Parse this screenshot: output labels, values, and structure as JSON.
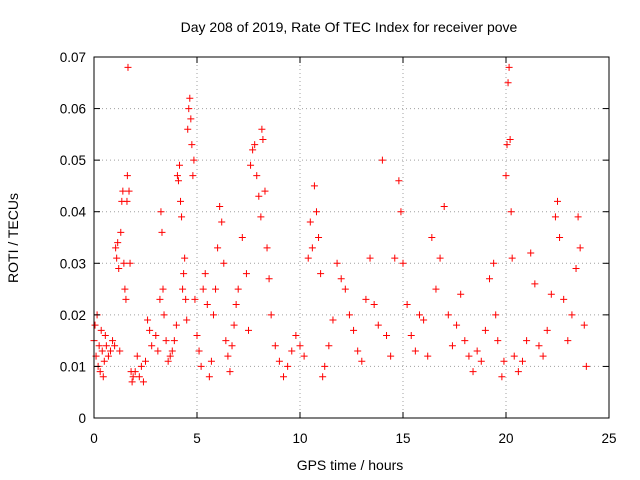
{
  "chart_data": {
    "type": "scatter",
    "title": "Day 208 of 2019, Rate Of TEC Index for receiver pove",
    "xlabel": "GPS time / hours",
    "ylabel": "ROTI / TECUs",
    "xlim": [
      0,
      25
    ],
    "ylim": [
      0,
      0.07
    ],
    "x_ticks": [
      "0",
      "5",
      "10",
      "15",
      "20",
      "25"
    ],
    "y_ticks": [
      "0",
      "0.01",
      "0.02",
      "0.03",
      "0.04",
      "0.05",
      "0.06",
      "0.07"
    ],
    "grid": true,
    "marker": "plus",
    "marker_color": "#ff0000",
    "series": [
      {
        "points": [
          [
            0.0,
            0.015
          ],
          [
            0.05,
            0.018
          ],
          [
            0.1,
            0.012
          ],
          [
            0.15,
            0.02
          ],
          [
            0.2,
            0.01
          ],
          [
            0.25,
            0.014
          ],
          [
            0.3,
            0.009
          ],
          [
            0.35,
            0.017
          ],
          [
            0.4,
            0.013
          ],
          [
            0.45,
            0.008
          ],
          [
            0.5,
            0.011
          ],
          [
            0.55,
            0.016
          ],
          [
            0.6,
            0.014
          ],
          [
            0.7,
            0.012
          ],
          [
            0.8,
            0.013
          ],
          [
            0.9,
            0.015
          ],
          [
            1.0,
            0.014
          ],
          [
            1.05,
            0.033
          ],
          [
            1.1,
            0.031
          ],
          [
            1.15,
            0.034
          ],
          [
            1.2,
            0.029
          ],
          [
            1.25,
            0.013
          ],
          [
            1.3,
            0.036
          ],
          [
            1.35,
            0.042
          ],
          [
            1.4,
            0.044
          ],
          [
            1.45,
            0.03
          ],
          [
            1.5,
            0.025
          ],
          [
            1.55,
            0.023
          ],
          [
            1.6,
            0.042
          ],
          [
            1.62,
            0.047
          ],
          [
            1.65,
            0.068
          ],
          [
            1.7,
            0.044
          ],
          [
            1.75,
            0.03
          ],
          [
            1.8,
            0.009
          ],
          [
            1.85,
            0.007
          ],
          [
            1.9,
            0.008
          ],
          [
            2.0,
            0.009
          ],
          [
            2.1,
            0.012
          ],
          [
            2.2,
            0.008
          ],
          [
            2.3,
            0.01
          ],
          [
            2.4,
            0.007
          ],
          [
            2.5,
            0.011
          ],
          [
            2.6,
            0.019
          ],
          [
            2.7,
            0.017
          ],
          [
            2.8,
            0.014
          ],
          [
            3.0,
            0.016
          ],
          [
            3.1,
            0.013
          ],
          [
            3.2,
            0.023
          ],
          [
            3.25,
            0.04
          ],
          [
            3.3,
            0.036
          ],
          [
            3.35,
            0.025
          ],
          [
            3.4,
            0.02
          ],
          [
            3.5,
            0.015
          ],
          [
            3.6,
            0.011
          ],
          [
            3.7,
            0.012
          ],
          [
            3.8,
            0.013
          ],
          [
            3.9,
            0.015
          ],
          [
            4.0,
            0.018
          ],
          [
            4.05,
            0.047
          ],
          [
            4.1,
            0.046
          ],
          [
            4.15,
            0.049
          ],
          [
            4.2,
            0.042
          ],
          [
            4.25,
            0.039
          ],
          [
            4.3,
            0.025
          ],
          [
            4.35,
            0.028
          ],
          [
            4.4,
            0.031
          ],
          [
            4.45,
            0.023
          ],
          [
            4.5,
            0.019
          ],
          [
            4.55,
            0.056
          ],
          [
            4.6,
            0.06
          ],
          [
            4.65,
            0.062
          ],
          [
            4.7,
            0.058
          ],
          [
            4.75,
            0.053
          ],
          [
            4.8,
            0.047
          ],
          [
            4.85,
            0.05
          ],
          [
            4.9,
            0.023
          ],
          [
            5.0,
            0.016
          ],
          [
            5.1,
            0.013
          ],
          [
            5.2,
            0.01
          ],
          [
            5.3,
            0.025
          ],
          [
            5.4,
            0.028
          ],
          [
            5.5,
            0.022
          ],
          [
            5.6,
            0.008
          ],
          [
            5.7,
            0.011
          ],
          [
            5.8,
            0.02
          ],
          [
            5.9,
            0.025
          ],
          [
            6.0,
            0.033
          ],
          [
            6.1,
            0.041
          ],
          [
            6.2,
            0.038
          ],
          [
            6.3,
            0.03
          ],
          [
            6.4,
            0.015
          ],
          [
            6.5,
            0.012
          ],
          [
            6.6,
            0.009
          ],
          [
            6.7,
            0.014
          ],
          [
            6.8,
            0.018
          ],
          [
            6.9,
            0.022
          ],
          [
            7.0,
            0.025
          ],
          [
            7.2,
            0.035
          ],
          [
            7.4,
            0.028
          ],
          [
            7.5,
            0.017
          ],
          [
            7.6,
            0.049
          ],
          [
            7.7,
            0.052
          ],
          [
            7.8,
            0.053
          ],
          [
            7.9,
            0.047
          ],
          [
            8.0,
            0.043
          ],
          [
            8.1,
            0.039
          ],
          [
            8.15,
            0.056
          ],
          [
            8.2,
            0.054
          ],
          [
            8.3,
            0.044
          ],
          [
            8.4,
            0.033
          ],
          [
            8.5,
            0.027
          ],
          [
            8.6,
            0.02
          ],
          [
            8.8,
            0.014
          ],
          [
            9.0,
            0.011
          ],
          [
            9.2,
            0.008
          ],
          [
            9.4,
            0.01
          ],
          [
            9.6,
            0.013
          ],
          [
            9.8,
            0.016
          ],
          [
            10.0,
            0.014
          ],
          [
            10.2,
            0.012
          ],
          [
            10.4,
            0.031
          ],
          [
            10.5,
            0.038
          ],
          [
            10.6,
            0.033
          ],
          [
            10.7,
            0.045
          ],
          [
            10.8,
            0.04
          ],
          [
            10.9,
            0.035
          ],
          [
            11.0,
            0.028
          ],
          [
            11.1,
            0.008
          ],
          [
            11.2,
            0.01
          ],
          [
            11.4,
            0.014
          ],
          [
            11.6,
            0.019
          ],
          [
            11.8,
            0.03
          ],
          [
            12.0,
            0.027
          ],
          [
            12.2,
            0.025
          ],
          [
            12.4,
            0.02
          ],
          [
            12.6,
            0.017
          ],
          [
            12.8,
            0.013
          ],
          [
            13.0,
            0.011
          ],
          [
            13.2,
            0.023
          ],
          [
            13.4,
            0.031
          ],
          [
            13.6,
            0.022
          ],
          [
            13.8,
            0.018
          ],
          [
            14.0,
            0.05
          ],
          [
            14.2,
            0.016
          ],
          [
            14.4,
            0.012
          ],
          [
            14.6,
            0.031
          ],
          [
            14.8,
            0.046
          ],
          [
            14.9,
            0.04
          ],
          [
            15.0,
            0.03
          ],
          [
            15.2,
            0.022
          ],
          [
            15.4,
            0.016
          ],
          [
            15.6,
            0.013
          ],
          [
            15.8,
            0.02
          ],
          [
            16.0,
            0.019
          ],
          [
            16.2,
            0.012
          ],
          [
            16.4,
            0.035
          ],
          [
            16.6,
            0.025
          ],
          [
            16.8,
            0.031
          ],
          [
            17.0,
            0.041
          ],
          [
            17.2,
            0.02
          ],
          [
            17.4,
            0.014
          ],
          [
            17.6,
            0.018
          ],
          [
            17.8,
            0.024
          ],
          [
            18.0,
            0.015
          ],
          [
            18.2,
            0.012
          ],
          [
            18.4,
            0.009
          ],
          [
            18.6,
            0.013
          ],
          [
            18.8,
            0.011
          ],
          [
            19.0,
            0.017
          ],
          [
            19.2,
            0.027
          ],
          [
            19.4,
            0.03
          ],
          [
            19.5,
            0.02
          ],
          [
            19.6,
            0.015
          ],
          [
            19.8,
            0.008
          ],
          [
            19.9,
            0.011
          ],
          [
            20.0,
            0.047
          ],
          [
            20.05,
            0.053
          ],
          [
            20.1,
            0.065
          ],
          [
            20.15,
            0.068
          ],
          [
            20.2,
            0.054
          ],
          [
            20.25,
            0.04
          ],
          [
            20.3,
            0.031
          ],
          [
            20.4,
            0.012
          ],
          [
            20.6,
            0.009
          ],
          [
            20.8,
            0.011
          ],
          [
            21.0,
            0.015
          ],
          [
            21.2,
            0.032
          ],
          [
            21.4,
            0.026
          ],
          [
            21.6,
            0.014
          ],
          [
            21.8,
            0.012
          ],
          [
            22.0,
            0.017
          ],
          [
            22.2,
            0.024
          ],
          [
            22.4,
            0.039
          ],
          [
            22.5,
            0.042
          ],
          [
            22.6,
            0.035
          ],
          [
            22.8,
            0.023
          ],
          [
            23.0,
            0.015
          ],
          [
            23.2,
            0.02
          ],
          [
            23.4,
            0.029
          ],
          [
            23.5,
            0.039
          ],
          [
            23.6,
            0.033
          ],
          [
            23.8,
            0.018
          ],
          [
            23.9,
            0.01
          ]
        ]
      }
    ]
  }
}
